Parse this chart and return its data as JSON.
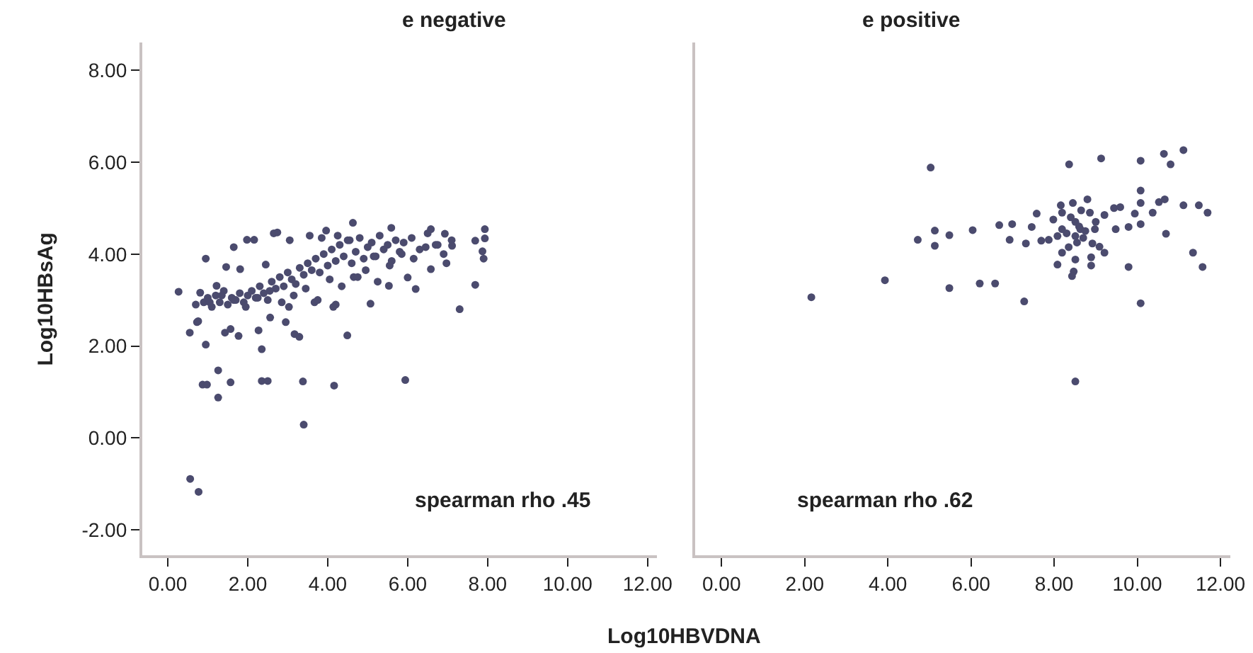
{
  "chart_data": [
    {
      "type": "scatter",
      "title": "e negative",
      "xlabel": "Log10HBVDNA",
      "ylabel": "Log10HBsAg",
      "color": "#4b4b6e",
      "marker": "circle",
      "xlim": [
        -0.64,
        12.24
      ],
      "ylim": [
        -2.55,
        8.6
      ],
      "xticks": [
        {
          "value": 0,
          "label": "0.00"
        },
        {
          "value": 2,
          "label": "2.00"
        },
        {
          "value": 4,
          "label": "4.00"
        },
        {
          "value": 6,
          "label": "6.00"
        },
        {
          "value": 8,
          "label": "8.00"
        },
        {
          "value": 10,
          "label": "10.00"
        },
        {
          "value": 12,
          "label": "12.00"
        }
      ],
      "yticks": [
        {
          "value": -2,
          "label": "-2.00"
        },
        {
          "value": 0,
          "label": "0.00"
        },
        {
          "value": 2,
          "label": "2.00"
        },
        {
          "value": 4,
          "label": "4.00"
        },
        {
          "value": 6,
          "label": "6.00"
        },
        {
          "value": 8,
          "label": "8.00"
        }
      ],
      "annotations": [
        "spearman rho .45"
      ],
      "x": [
        0.27,
        0.95,
        0.55,
        0.95,
        1.26,
        0.87,
        0.98,
        1.57,
        1.26,
        2.35,
        2.5,
        3.38,
        4.16,
        5.94,
        0.56,
        0.77,
        3.4,
        2.35,
        1.43,
        1.57,
        1.77,
        2.27,
        3.17,
        3.29,
        4.49,
        2.56,
        2.95,
        0.73,
        5.07,
        6.2,
        7.69,
        3.67,
        4.2,
        4.63,
        5.59,
        2.74,
        1.98,
        2.16,
        1.65,
        3.96,
        6.58,
        6.93,
        7.93,
        7.93,
        7.69,
        7.87,
        7.9,
        6.58,
        6.97,
        7.11,
        5.53,
        6.0,
        4.14,
        3.03,
        1.46,
        1.81,
        2.45,
        1.22,
        0.81,
        0.7,
        0.76,
        0.9,
        1.0,
        1.1,
        1.2,
        1.3,
        1.4,
        1.5,
        1.6,
        1.7,
        1.8,
        1.9,
        2.0,
        2.1,
        2.2,
        2.3,
        2.4,
        2.5,
        2.6,
        2.7,
        2.8,
        2.9,
        3.0,
        3.1,
        3.2,
        3.3,
        3.4,
        3.5,
        3.6,
        3.7,
        3.8,
        3.9,
        4.0,
        4.1,
        4.2,
        4.3,
        4.4,
        4.5,
        4.6,
        4.7,
        4.8,
        4.9,
        5.0,
        5.1,
        5.2,
        5.3,
        5.4,
        5.5,
        5.6,
        5.7,
        5.8,
        5.9,
        6.1,
        6.3,
        6.5,
        6.7,
        6.9,
        7.1,
        7.3,
        1.05,
        1.35,
        1.65,
        1.95,
        2.25,
        2.55,
        2.85,
        3.15,
        3.45,
        3.75,
        4.05,
        4.35,
        4.65,
        4.95,
        5.25,
        5.55,
        5.85,
        6.15,
        6.45,
        6.75,
        3.55,
        3.85,
        4.25,
        4.55,
        3.05,
        2.65,
        5.15,
        4.75
      ],
      "values": [
        3.18,
        3.9,
        2.29,
        2.03,
        1.47,
        1.16,
        1.16,
        1.21,
        0.88,
        1.24,
        1.24,
        1.23,
        1.14,
        1.26,
        -0.89,
        -1.17,
        0.29,
        1.93,
        2.29,
        2.37,
        2.22,
        2.34,
        2.26,
        2.2,
        2.23,
        2.62,
        2.52,
        2.52,
        2.92,
        3.24,
        3.33,
        2.95,
        2.9,
        4.68,
        4.57,
        4.47,
        4.31,
        4.31,
        4.15,
        4.51,
        4.54,
        4.44,
        4.54,
        4.34,
        4.29,
        4.06,
        3.9,
        3.67,
        3.8,
        4.18,
        3.31,
        3.49,
        2.85,
        2.85,
        3.72,
        3.67,
        3.77,
        3.31,
        3.16,
        2.9,
        2.54,
        2.95,
        3.05,
        2.85,
        3.1,
        2.95,
        3.2,
        2.9,
        3.05,
        3.0,
        3.15,
        2.95,
        3.1,
        3.2,
        3.05,
        3.3,
        3.15,
        3.0,
        3.4,
        3.25,
        3.5,
        3.3,
        3.6,
        3.45,
        3.35,
        3.7,
        3.55,
        3.8,
        3.65,
        3.9,
        3.6,
        4.0,
        3.75,
        4.1,
        3.85,
        4.2,
        3.95,
        4.3,
        3.8,
        4.05,
        4.35,
        3.9,
        4.15,
        4.25,
        3.95,
        4.4,
        4.1,
        4.2,
        3.85,
        4.3,
        4.05,
        4.25,
        4.35,
        4.1,
        4.45,
        4.2,
        4.0,
        4.3,
        2.8,
        2.95,
        3.1,
        3.0,
        2.85,
        3.05,
        3.2,
        2.95,
        3.1,
        3.25,
        3.0,
        3.45,
        3.3,
        3.5,
        3.65,
        3.4,
        3.75,
        4.0,
        3.9,
        4.15,
        4.2,
        4.4,
        4.35,
        4.4,
        4.3,
        4.3,
        4.45,
        3.95,
        3.5
      ]
    },
    {
      "type": "scatter",
      "title": "e positive",
      "color": "#4b4b6e",
      "marker": "circle",
      "tick_labels": "x",
      "xlim": [
        -0.64,
        12.24
      ],
      "ylim": [
        -2.55,
        8.6
      ],
      "xticks": [
        {
          "value": 0,
          "label": "0.00"
        },
        {
          "value": 2,
          "label": "2.00"
        },
        {
          "value": 4,
          "label": "4.00"
        },
        {
          "value": 6,
          "label": "6.00"
        },
        {
          "value": 8,
          "label": "8.00"
        },
        {
          "value": 10,
          "label": "10.00"
        },
        {
          "value": 12,
          "label": "12.00"
        }
      ],
      "yticks": [
        {
          "value": -2,
          "label": null
        },
        {
          "value": 0,
          "label": null
        },
        {
          "value": 2,
          "label": null
        },
        {
          "value": 4,
          "label": null
        },
        {
          "value": 6,
          "label": null
        },
        {
          "value": 8,
          "label": null
        }
      ],
      "annotations": [
        "spearman rho .62"
      ],
      "x": [
        2.16,
        3.93,
        5.03,
        4.72,
        5.13,
        5.13,
        5.48,
        5.48,
        6.04,
        6.21,
        6.58,
        6.68,
        6.99,
        6.93,
        7.28,
        7.32,
        7.46,
        7.58,
        7.69,
        7.87,
        7.98,
        8.08,
        8.16,
        8.19,
        8.19,
        8.08,
        8.36,
        8.45,
        8.51,
        8.51,
        8.51,
        8.47,
        8.43,
        8.51,
        8.63,
        8.8,
        8.86,
        8.92,
        8.89,
        8.89,
        8.98,
        9.09,
        9.13,
        9.21,
        9.21,
        9.44,
        9.48,
        9.59,
        9.79,
        9.79,
        9.94,
        10.08,
        10.08,
        10.08,
        10.08,
        10.08,
        10.37,
        10.52,
        10.66,
        10.69,
        10.64,
        10.8,
        11.11,
        11.11,
        11.34,
        11.48,
        11.57,
        11.69,
        8.19,
        8.3,
        8.6,
        8.7,
        8.4,
        8.75,
        8.55,
        9.0,
        8.35,
        8.65
      ],
      "values": [
        3.06,
        3.43,
        5.88,
        4.31,
        4.51,
        4.18,
        4.41,
        3.26,
        4.52,
        3.36,
        3.36,
        4.63,
        4.65,
        4.31,
        2.97,
        4.23,
        4.59,
        4.88,
        4.29,
        4.31,
        4.75,
        4.39,
        5.06,
        4.9,
        4.03,
        3.77,
        5.95,
        5.11,
        4.7,
        4.39,
        3.88,
        3.62,
        3.52,
        1.23,
        4.54,
        5.19,
        4.9,
        4.23,
        3.93,
        3.75,
        4.54,
        4.16,
        6.08,
        4.03,
        4.85,
        5.0,
        4.54,
        5.02,
        4.59,
        3.72,
        4.88,
        6.03,
        5.38,
        5.11,
        4.65,
        2.93,
        4.9,
        5.13,
        5.19,
        4.44,
        6.18,
        5.95,
        6.26,
        5.06,
        4.03,
        5.06,
        3.72,
        4.9,
        4.54,
        4.45,
        4.6,
        4.35,
        4.8,
        4.5,
        4.25,
        4.7,
        4.15,
        4.95
      ]
    }
  ]
}
